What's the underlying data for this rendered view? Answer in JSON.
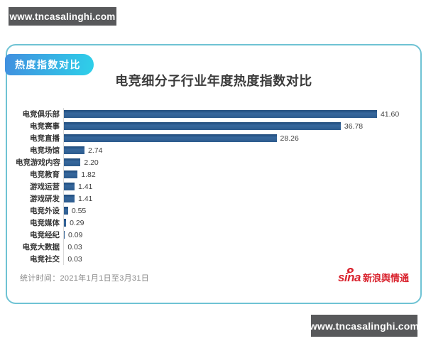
{
  "watermarks": {
    "top": "www.tncasalinghi.com",
    "bottom": "www.tncasalinghi.com"
  },
  "panel": {
    "badge": "热度指数对比",
    "title": "电竞细分子行业年度热度指数对比",
    "stats_time": "统计时间：2021年1月1日至3月31日",
    "brand": {
      "logo_text": "sina",
      "name": "新浪舆情通"
    }
  },
  "colors": {
    "bar": "#2d5c8e",
    "panel_border": "#6fc3d4",
    "badge_gradient_start": "#418fdf",
    "badge_gradient_end": "#2ed0e9",
    "watermark_bg": "#58595b",
    "brand_red": "#d9232e",
    "title_text": "#3b3b3b",
    "stats_text": "#8a8a8a"
  },
  "chart_data": {
    "type": "bar",
    "orientation": "horizontal",
    "title": "电竞细分子行业年度热度指数对比",
    "categories": [
      "电竞俱乐部",
      "电竞赛事",
      "电竞直播",
      "电竞场馆",
      "电竞游戏内容",
      "电竞教育",
      "游戏运营",
      "游戏研发",
      "电竞外设",
      "电竞媒体",
      "电竞经纪",
      "电竞大数据",
      "电竞社交"
    ],
    "values": [
      41.6,
      36.78,
      28.26,
      2.74,
      2.2,
      1.82,
      1.41,
      1.41,
      0.55,
      0.29,
      0.09,
      0.03,
      0.03
    ],
    "value_labels": [
      "41.60",
      "36.78",
      "28.26",
      "2.74",
      "2.20",
      "1.82",
      "1.41",
      "1.41",
      "0.55",
      "0.29",
      "0.09",
      "0.03",
      "0.03"
    ],
    "xlabel": "",
    "ylabel": "",
    "xlim": [
      0,
      45
    ],
    "grid": false,
    "legend": false,
    "value_labels_shown": true
  }
}
